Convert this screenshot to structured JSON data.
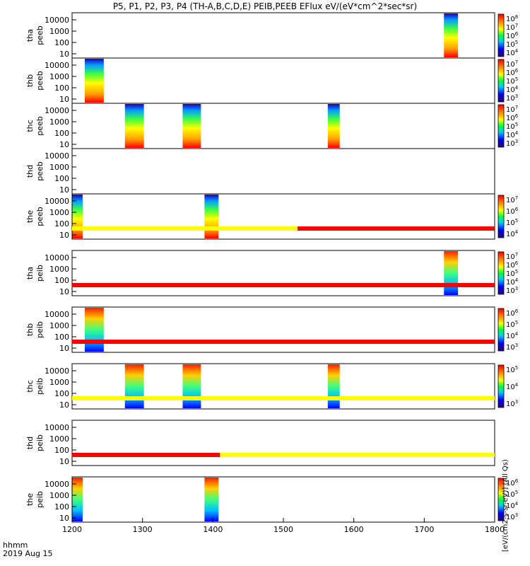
{
  "title": "P5, P1, P2, P3, P4 (TH-A,B,C,D,E) PEIB,PEEB EFlux eV/(eV*cm^2*sec*sr)",
  "footer": {
    "time_label": "hhmm",
    "date_label": "2019 Aug 15"
  },
  "colorbar_label": "[eV/(cm2-s-sr-eV)] (All Qs)",
  "colors": {
    "frame": "#000000",
    "red_bar": "#ff0000",
    "yellow_bar": "#ffff00"
  },
  "chart_data": {
    "type": "heatmap",
    "x_axis": {
      "range": [
        1200,
        1800
      ],
      "ticks": [
        1200,
        1300,
        1400,
        1500,
        1600,
        1700,
        1800
      ]
    },
    "y_ticks": [
      "10000",
      "1000",
      "100",
      "10"
    ],
    "panels": [
      {
        "label": [
          "tha",
          "peeb"
        ],
        "cbar": [
          "10^8",
          "10^7",
          "10^6",
          "10^5",
          "10^4"
        ],
        "blocks": [
          [
            1728,
            1748
          ]
        ]
      },
      {
        "label": [
          "thb",
          "peeb"
        ],
        "cbar": [
          "10^7",
          "10^6",
          "10^5",
          "10^4",
          "10^3"
        ],
        "blocks": [
          [
            1218,
            1245
          ]
        ]
      },
      {
        "label": [
          "thc",
          "peeb"
        ],
        "cbar": [
          "10^7",
          "10^6",
          "10^5",
          "10^4",
          "10^3"
        ],
        "blocks": [
          [
            1275,
            1302
          ],
          [
            1357,
            1383
          ],
          [
            1563,
            1580
          ]
        ]
      },
      {
        "label": [
          "thd",
          "peeb"
        ],
        "cbar": [],
        "blocks": []
      },
      {
        "label": [
          "the",
          "peeb"
        ],
        "cbar": [
          "10^7",
          "10^6",
          "10^5",
          "10^4"
        ],
        "blocks": [
          [
            1200,
            1215
          ],
          [
            1388,
            1408
          ]
        ]
      },
      {
        "label": [
          "tha",
          "peib"
        ],
        "cbar": [
          "10^7",
          "10^6",
          "10^5",
          "10^4",
          "10^3"
        ],
        "blocks": [
          [
            1728,
            1748
          ]
        ]
      },
      {
        "label": [
          "thb",
          "peib"
        ],
        "cbar": [
          "10^6",
          "10^5",
          "10^4",
          "10^3"
        ],
        "blocks": [
          [
            1218,
            1245
          ]
        ]
      },
      {
        "label": [
          "thc",
          "peib"
        ],
        "cbar": [
          "10^5",
          "10^4",
          "10^3"
        ],
        "blocks": [
          [
            1275,
            1302
          ],
          [
            1357,
            1383
          ],
          [
            1563,
            1580
          ]
        ]
      },
      {
        "label": [
          "thd",
          "peib"
        ],
        "cbar": [],
        "blocks": []
      },
      {
        "label": [
          "the",
          "peib"
        ],
        "cbar": [
          "10^6",
          "10^5",
          "10^4",
          "10^3"
        ],
        "blocks": [
          [
            1200,
            1215
          ],
          [
            1388,
            1408
          ]
        ]
      }
    ],
    "status_bars": [
      {
        "before_panel": 5,
        "segments": [
          {
            "from": 1200,
            "to": 1520,
            "color": "yellow"
          },
          {
            "from": 1520,
            "to": 1800,
            "color": "red"
          }
        ]
      },
      {
        "before_panel": 6,
        "segments": [
          {
            "from": 1200,
            "to": 1800,
            "color": "red"
          }
        ]
      },
      {
        "before_panel": 7,
        "segments": [
          {
            "from": 1200,
            "to": 1800,
            "color": "red"
          }
        ]
      },
      {
        "before_panel": 8,
        "segments": [
          {
            "from": 1200,
            "to": 1800,
            "color": "yellow"
          }
        ]
      },
      {
        "before_panel": 9,
        "segments": [
          {
            "from": 1200,
            "to": 1410,
            "color": "red"
          },
          {
            "from": 1410,
            "to": 1800,
            "color": "yellow"
          }
        ]
      }
    ]
  }
}
